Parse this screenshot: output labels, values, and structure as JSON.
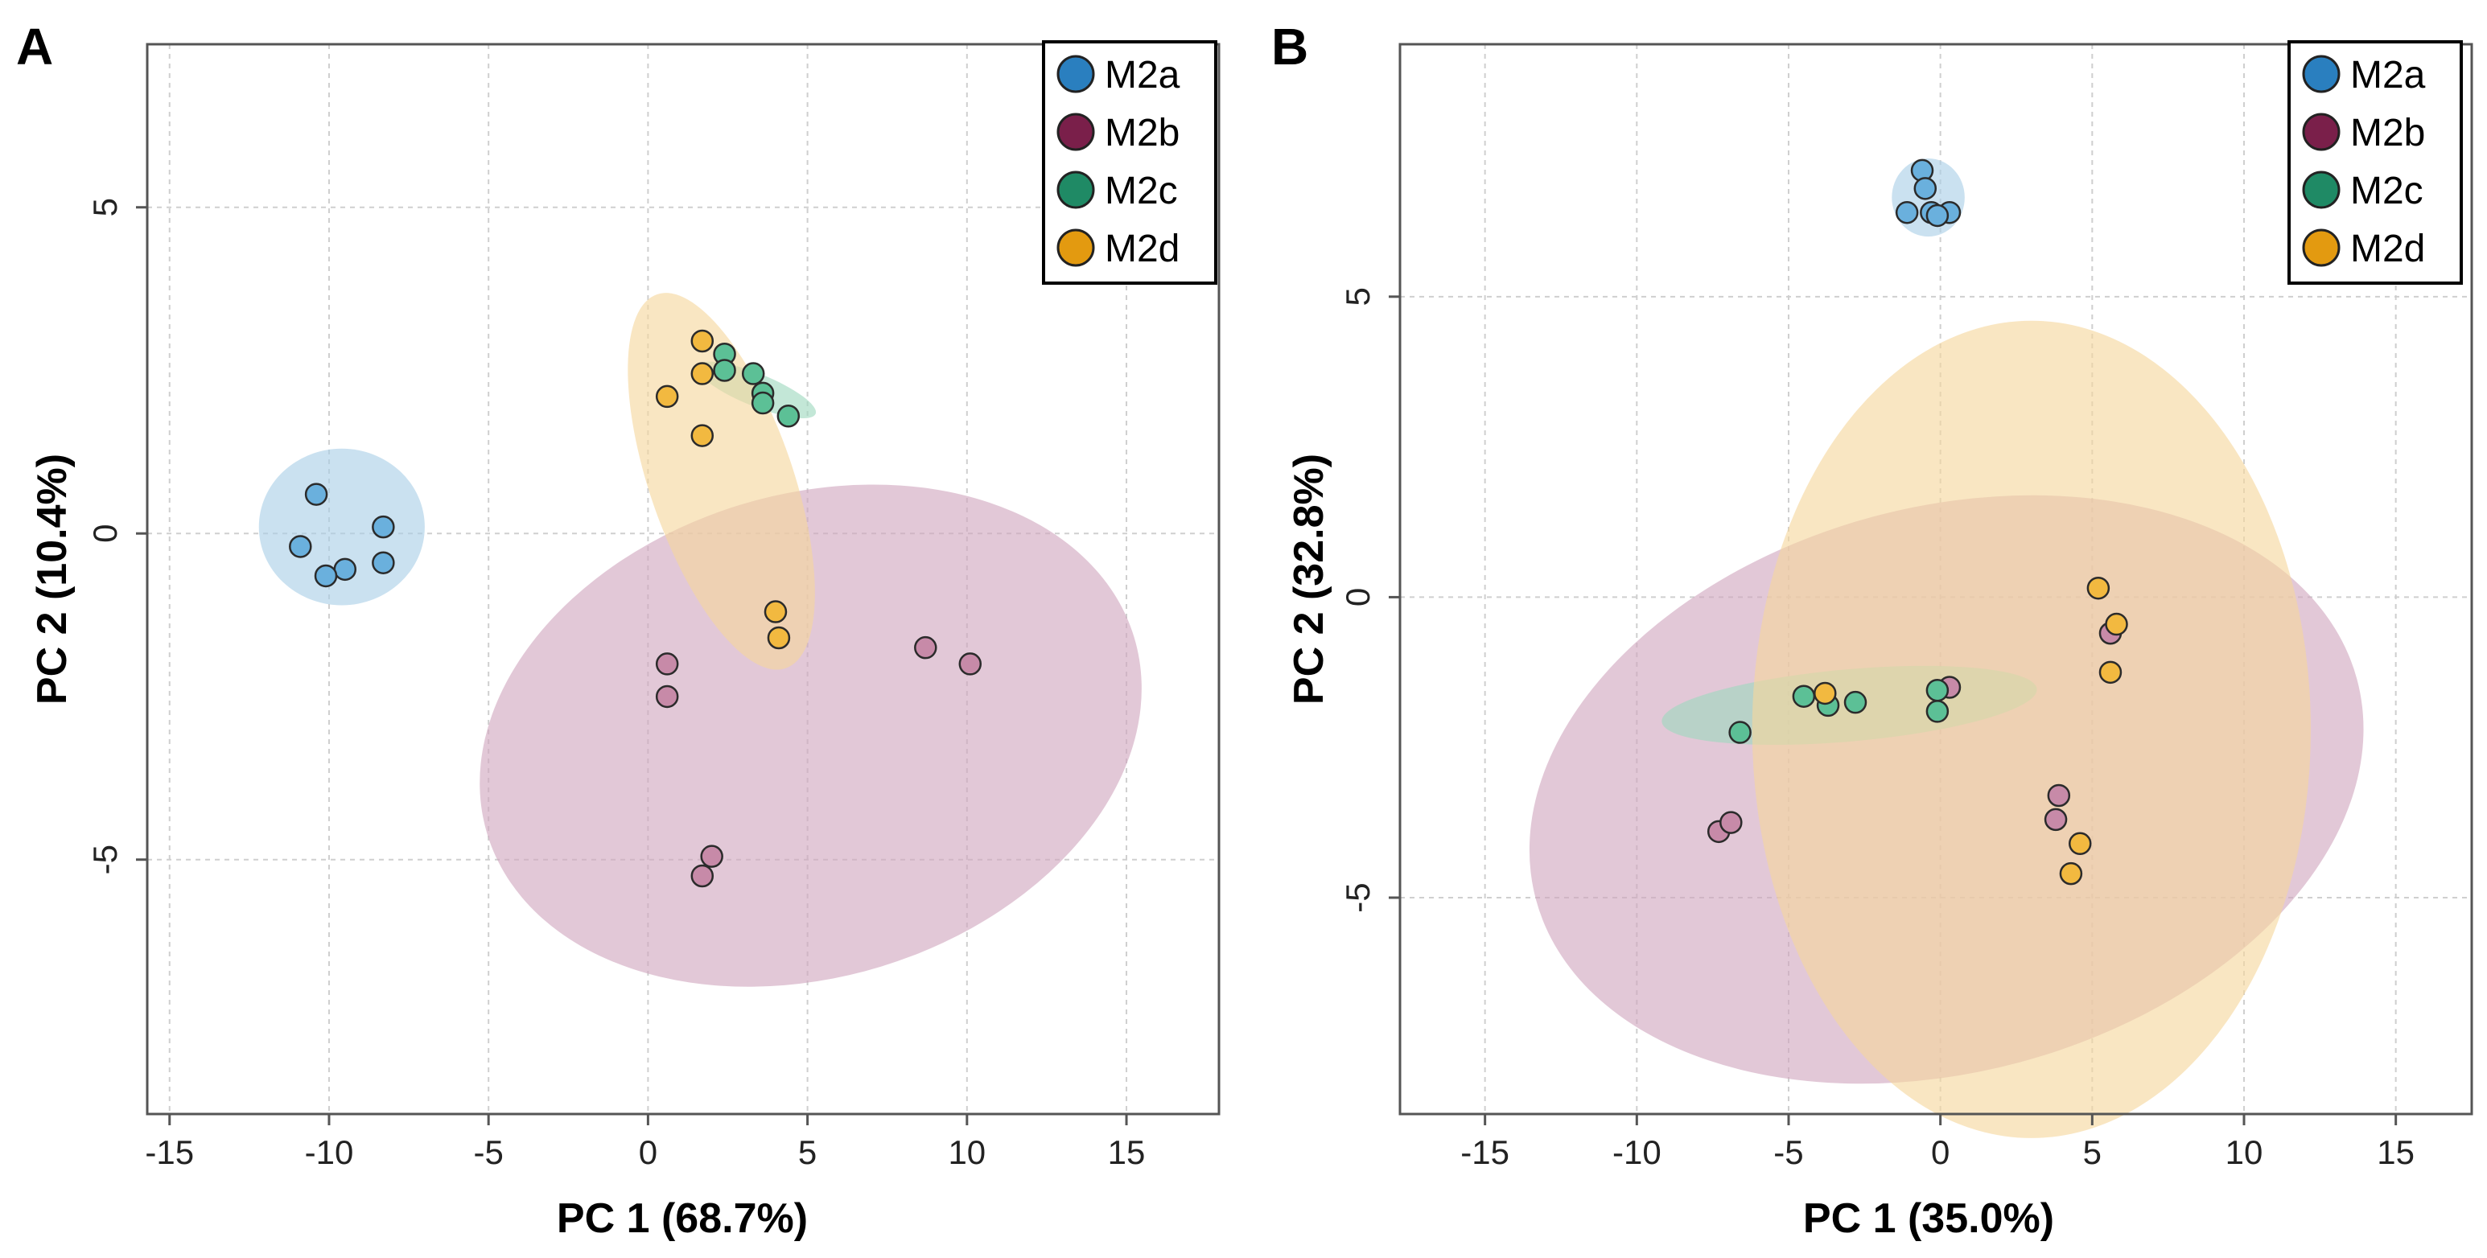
{
  "series_colors": {
    "M2a": "#2a7fbf",
    "M2b": "#7a1f4a",
    "M2c": "#1f8a65",
    "M2d": "#e39a10"
  },
  "point_colors": {
    "M2a": "#6ab0dd",
    "M2b": "#c78aa8",
    "M2c": "#5cc096",
    "M2d": "#f2b940"
  },
  "ellipse_colors": {
    "M2a": "#a9cfe6",
    "M2b": "#d1a6bf",
    "M2c": "#9ed8be",
    "M2d": "#f6d79c"
  },
  "chart_data": [
    {
      "panel": "A",
      "type": "scatter",
      "title": "",
      "xlabel": "PC 1 (68.7%)",
      "ylabel": "PC 2 (10.4%)",
      "xlim": [
        -15.7,
        17.9
      ],
      "ylim": [
        -8.9,
        7.5
      ],
      "xticks": [
        -15,
        -10,
        -5,
        0,
        5,
        10,
        15
      ],
      "yticks": [
        -5,
        0,
        5
      ],
      "grid": true,
      "legend_position": "top-right",
      "legend": [
        "M2a",
        "M2b",
        "M2c",
        "M2d"
      ],
      "series": [
        {
          "name": "M2a",
          "points": [
            [
              -10.4,
              0.6
            ],
            [
              -8.3,
              0.1
            ],
            [
              -10.9,
              -0.2
            ],
            [
              -9.5,
              -0.55
            ],
            [
              -10.1,
              -0.65
            ],
            [
              -8.3,
              -0.45
            ]
          ],
          "ellipse": {
            "cx": -9.6,
            "cy": 0.1,
            "rx": 2.6,
            "ry": 1.2,
            "angle": 0
          }
        },
        {
          "name": "M2b",
          "points": [
            [
              0.6,
              -2.0
            ],
            [
              0.6,
              -2.5
            ],
            [
              8.7,
              -1.75
            ],
            [
              10.1,
              -2.0
            ],
            [
              2.0,
              -4.95
            ],
            [
              1.7,
              -5.25
            ]
          ],
          "ellipse": {
            "cx": 5.1,
            "cy": -3.1,
            "rx": 10.6,
            "ry": 3.7,
            "angle": 17
          }
        },
        {
          "name": "M2c",
          "points": [
            [
              2.4,
              2.75
            ],
            [
              3.3,
              2.45
            ],
            [
              2.4,
              2.5
            ],
            [
              3.6,
              2.15
            ],
            [
              3.6,
              2.0
            ],
            [
              4.4,
              1.8
            ]
          ],
          "ellipse": {
            "cx": 3.4,
            "cy": 2.2,
            "rx": 2.0,
            "ry": 0.25,
            "angle": -22
          }
        },
        {
          "name": "M2d",
          "points": [
            [
              1.7,
              2.95
            ],
            [
              1.7,
              2.45
            ],
            [
              0.6,
              2.1
            ],
            [
              1.7,
              1.5
            ],
            [
              4.0,
              -1.2
            ],
            [
              4.1,
              -1.6
            ]
          ],
          "ellipse": {
            "cx": 2.3,
            "cy": 0.8,
            "rx": 6.2,
            "ry": 1.1,
            "angle": -71
          }
        }
      ]
    },
    {
      "panel": "B",
      "type": "scatter",
      "title": "",
      "xlabel": "PC 1 (35.0%)",
      "ylabel": "PC 2 (32.8%)",
      "xlim": [
        -17.8,
        17.5
      ],
      "ylim": [
        -8.6,
        9.2
      ],
      "xticks": [
        -15,
        -10,
        -5,
        0,
        5,
        10,
        15
      ],
      "yticks": [
        -5,
        0,
        5
      ],
      "grid": true,
      "legend_position": "top-right",
      "legend": [
        "M2a",
        "M2b",
        "M2c",
        "M2d"
      ],
      "series": [
        {
          "name": "M2a",
          "points": [
            [
              -0.6,
              7.1
            ],
            [
              -0.5,
              6.8
            ],
            [
              -0.3,
              6.4
            ],
            [
              -1.1,
              6.4
            ],
            [
              0.3,
              6.4
            ],
            [
              -0.1,
              6.35
            ]
          ],
          "ellipse": {
            "cx": -0.4,
            "cy": 6.65,
            "rx": 1.2,
            "ry": 0.65,
            "angle": 0
          }
        },
        {
          "name": "M2b",
          "points": [
            [
              0.3,
              -1.5
            ],
            [
              5.6,
              -0.6
            ],
            [
              3.9,
              -3.3
            ],
            [
              3.8,
              -3.7
            ],
            [
              -7.3,
              -3.9
            ],
            [
              -6.9,
              -3.75
            ]
          ],
          "ellipse": {
            "cx": 0.2,
            "cy": -3.2,
            "rx": 14.0,
            "ry": 4.7,
            "angle": 15
          }
        },
        {
          "name": "M2c",
          "points": [
            [
              -4.5,
              -1.65
            ],
            [
              -3.7,
              -1.8
            ],
            [
              -2.8,
              -1.75
            ],
            [
              -0.1,
              -1.55
            ],
            [
              -0.1,
              -1.9
            ],
            [
              -6.6,
              -2.25
            ]
          ],
          "ellipse": {
            "cx": -3.0,
            "cy": -1.8,
            "rx": 6.2,
            "ry": 0.6,
            "angle": 5
          }
        },
        {
          "name": "M2d",
          "points": [
            [
              5.2,
              0.15
            ],
            [
              5.8,
              -0.45
            ],
            [
              5.6,
              -1.25
            ],
            [
              -3.8,
              -1.6
            ],
            [
              4.6,
              -4.1
            ],
            [
              4.3,
              -4.6
            ]
          ],
          "ellipse": {
            "cx": 3.0,
            "cy": -2.2,
            "rx": 9.2,
            "ry": 6.8,
            "angle": 0
          }
        }
      ]
    }
  ]
}
